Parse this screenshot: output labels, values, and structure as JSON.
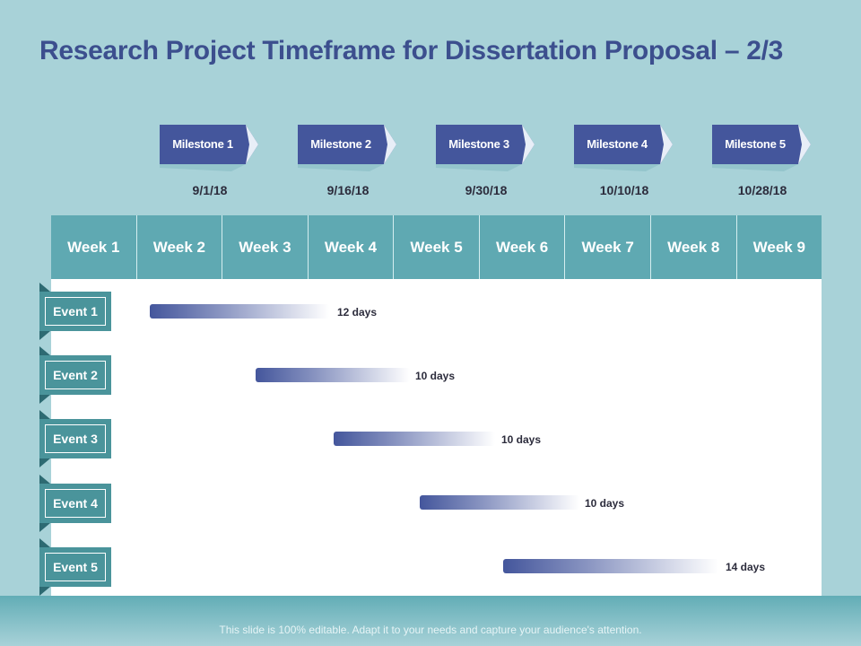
{
  "title": "Research Project Timeframe for Dissertation Proposal – 2/3",
  "milestones": [
    {
      "label": "Milestone 1",
      "date": "9/1/18"
    },
    {
      "label": "Milestone 2",
      "date": "9/16/18"
    },
    {
      "label": "Milestone 3",
      "date": "9/30/18"
    },
    {
      "label": "Milestone 4",
      "date": "10/10/18"
    },
    {
      "label": "Milestone 5",
      "date": "10/28/18"
    }
  ],
  "weeks": [
    "Week 1",
    "Week 2",
    "Week 3",
    "Week 4",
    "Week 5",
    "Week 6",
    "Week 7",
    "Week 8",
    "Week 9"
  ],
  "events": [
    {
      "label": "Event 1",
      "duration": "12 days"
    },
    {
      "label": "Event 2",
      "duration": "10 days"
    },
    {
      "label": "Event 3",
      "duration": "10 days"
    },
    {
      "label": "Event 4",
      "duration": "10 days"
    },
    {
      "label": "Event 5",
      "duration": "14 days"
    }
  ],
  "footer": "This slide is 100% editable. Adapt it to your needs and capture your audience's attention.",
  "colors": {
    "background": "#a8d2d8",
    "title": "#3c4f8e",
    "milestone": "#44569c",
    "header": "#5fa9b2",
    "event_tab": "#4a949b"
  }
}
